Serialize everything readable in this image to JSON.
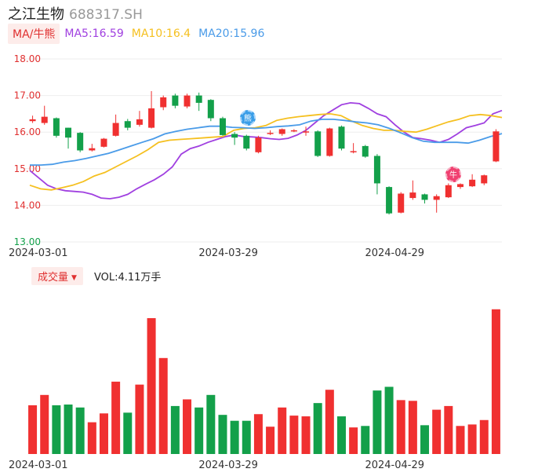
{
  "header": {
    "name": "之江生物",
    "code": "688317.SH"
  },
  "ma_legend": {
    "badge": "MA/牛熊",
    "items": [
      {
        "label": "MA5:16.59",
        "color": "#a040e0"
      },
      {
        "label": "MA10:16.4",
        "color": "#f5c020"
      },
      {
        "label": "MA20:15.96",
        "color": "#4a9be8"
      }
    ]
  },
  "volume_legend": {
    "badge": "成交量",
    "text": "VOL:4.11万手"
  },
  "markers": {
    "bear": "熊",
    "bull": "牛"
  },
  "colors": {
    "up": "#f03030",
    "down": "#13a04a",
    "grid": "#eeeeee",
    "axis_label": "#e03030"
  },
  "chart_data": [
    {
      "type": "candlestick",
      "title": "",
      "ylim": [
        13.0,
        18.0
      ],
      "yticks": [
        "18.00",
        "17.00",
        "16.00",
        "15.00",
        "14.00",
        "13.00"
      ],
      "xticks": [
        {
          "label": "2024-03-01",
          "index": 1
        },
        {
          "label": "2024-03-29",
          "index": 17
        },
        {
          "label": "2024-04-29",
          "index": 31
        }
      ],
      "candles": [
        {
          "o": 16.3,
          "c": 16.35,
          "h": 16.45,
          "l": 16.25
        },
        {
          "o": 16.25,
          "c": 16.42,
          "h": 16.72,
          "l": 16.2
        },
        {
          "o": 16.38,
          "c": 15.9,
          "h": 16.4,
          "l": 15.85
        },
        {
          "o": 16.12,
          "c": 15.85,
          "h": 16.12,
          "l": 15.55
        },
        {
          "o": 15.98,
          "c": 15.5,
          "h": 16.0,
          "l": 15.45
        },
        {
          "o": 15.5,
          "c": 15.56,
          "h": 15.68,
          "l": 15.47
        },
        {
          "o": 15.6,
          "c": 15.82,
          "h": 15.84,
          "l": 15.58
        },
        {
          "o": 15.9,
          "c": 16.25,
          "h": 16.48,
          "l": 15.88
        },
        {
          "o": 16.3,
          "c": 16.12,
          "h": 16.36,
          "l": 16.05
        },
        {
          "o": 16.2,
          "c": 16.35,
          "h": 16.58,
          "l": 16.15
        },
        {
          "o": 16.12,
          "c": 16.65,
          "h": 17.12,
          "l": 16.1
        },
        {
          "o": 16.68,
          "c": 16.95,
          "h": 17.0,
          "l": 16.6
        },
        {
          "o": 17.0,
          "c": 16.72,
          "h": 17.05,
          "l": 16.65
        },
        {
          "o": 16.7,
          "c": 17.0,
          "h": 17.05,
          "l": 16.65
        },
        {
          "o": 17.0,
          "c": 16.8,
          "h": 17.08,
          "l": 16.58
        },
        {
          "o": 16.88,
          "c": 16.38,
          "h": 16.9,
          "l": 16.3
        },
        {
          "o": 16.38,
          "c": 15.92,
          "h": 16.42,
          "l": 15.9
        },
        {
          "o": 15.95,
          "c": 15.85,
          "h": 16.0,
          "l": 15.65
        },
        {
          "o": 15.9,
          "c": 15.55,
          "h": 15.93,
          "l": 15.5
        },
        {
          "o": 15.45,
          "c": 15.85,
          "h": 15.9,
          "l": 15.42
        },
        {
          "o": 15.95,
          "c": 15.98,
          "h": 16.05,
          "l": 15.92
        },
        {
          "o": 15.95,
          "c": 16.08,
          "h": 16.1,
          "l": 15.9
        },
        {
          "o": 16.02,
          "c": 16.05,
          "h": 16.08,
          "l": 16.0
        },
        {
          "o": 16.0,
          "c": 16.02,
          "h": 16.15,
          "l": 15.9
        },
        {
          "o": 16.02,
          "c": 15.35,
          "h": 16.05,
          "l": 15.32
        },
        {
          "o": 15.35,
          "c": 16.1,
          "h": 16.12,
          "l": 15.33
        },
        {
          "o": 16.15,
          "c": 15.55,
          "h": 16.18,
          "l": 15.5
        },
        {
          "o": 15.45,
          "c": 15.48,
          "h": 15.7,
          "l": 15.42
        },
        {
          "o": 15.62,
          "c": 15.33,
          "h": 15.65,
          "l": 15.3
        },
        {
          "o": 15.35,
          "c": 14.6,
          "h": 15.4,
          "l": 14.3
        },
        {
          "o": 14.5,
          "c": 13.78,
          "h": 14.52,
          "l": 13.75
        },
        {
          "o": 13.8,
          "c": 14.32,
          "h": 14.36,
          "l": 13.78
        },
        {
          "o": 14.2,
          "c": 14.35,
          "h": 14.68,
          "l": 14.15
        },
        {
          "o": 14.3,
          "c": 14.15,
          "h": 14.32,
          "l": 14.05
        },
        {
          "o": 14.15,
          "c": 14.25,
          "h": 14.3,
          "l": 13.8
        },
        {
          "o": 14.22,
          "c": 14.55,
          "h": 14.6,
          "l": 14.2
        },
        {
          "o": 14.5,
          "c": 14.58,
          "h": 14.6,
          "l": 14.45
        },
        {
          "o": 14.52,
          "c": 14.7,
          "h": 14.85,
          "l": 14.5
        },
        {
          "o": 14.6,
          "c": 14.82,
          "h": 14.84,
          "l": 14.55
        },
        {
          "o": 15.2,
          "c": 16.02,
          "h": 16.08,
          "l": 15.18
        }
      ],
      "ma_lines": {
        "MA5": [
          14.95,
          14.75,
          14.55,
          14.45,
          14.4,
          14.38,
          14.36,
          14.3,
          14.2,
          14.18,
          14.22,
          14.3,
          14.45,
          14.58,
          14.7,
          14.85,
          15.05,
          15.4,
          15.55,
          15.62,
          15.72,
          15.8,
          15.88,
          15.92,
          15.88,
          15.87,
          15.85,
          15.82,
          15.8,
          15.83,
          15.92,
          16.05,
          16.25,
          16.45,
          16.6,
          16.75,
          16.8,
          16.78,
          16.65,
          16.5,
          16.42,
          16.2,
          16.0,
          15.85,
          15.82,
          15.78,
          15.72,
          15.8,
          15.95,
          16.12,
          16.18,
          16.25,
          16.5,
          16.59
        ],
        "MA10": [
          14.55,
          14.45,
          14.42,
          14.48,
          14.55,
          14.65,
          14.8,
          14.9,
          15.05,
          15.2,
          15.35,
          15.52,
          15.72,
          15.78,
          15.8,
          15.82,
          15.84,
          15.86,
          15.88,
          16.05,
          16.1,
          16.12,
          16.18,
          16.32,
          16.38,
          16.42,
          16.45,
          16.48,
          16.5,
          16.45,
          16.3,
          16.18,
          16.1,
          16.05,
          16.05,
          16.02,
          16.0,
          16.08,
          16.18,
          16.28,
          16.35,
          16.45,
          16.48,
          16.45,
          16.4
        ],
        "MA20": [
          15.1,
          15.1,
          15.12,
          15.18,
          15.22,
          15.28,
          15.35,
          15.42,
          15.52,
          15.62,
          15.72,
          15.82,
          15.95,
          16.02,
          16.08,
          16.12,
          16.16,
          16.16,
          16.13,
          16.12,
          16.1,
          16.12,
          16.15,
          16.17,
          16.2,
          16.3,
          16.35,
          16.35,
          16.32,
          16.28,
          16.25,
          16.2,
          16.1,
          15.98,
          15.85,
          15.75,
          15.72,
          15.72,
          15.72,
          15.7,
          15.78,
          15.88,
          15.96
        ]
      }
    },
    {
      "type": "bar",
      "title": "",
      "ylim": [
        0,
        100
      ],
      "values": [
        33,
        40,
        33,
        33.5,
        31.5,
        21.5,
        27.5,
        49,
        28,
        47,
        92,
        65,
        32.5,
        37,
        31.5,
        40,
        26.5,
        22.5,
        22.5,
        27,
        18.5,
        31.5,
        26,
        25.5,
        34.5,
        43.5,
        25.5,
        18,
        19,
        43,
        45.5,
        36.5,
        36,
        19.5,
        30,
        32.5,
        19,
        20,
        23,
        98
      ]
    }
  ]
}
